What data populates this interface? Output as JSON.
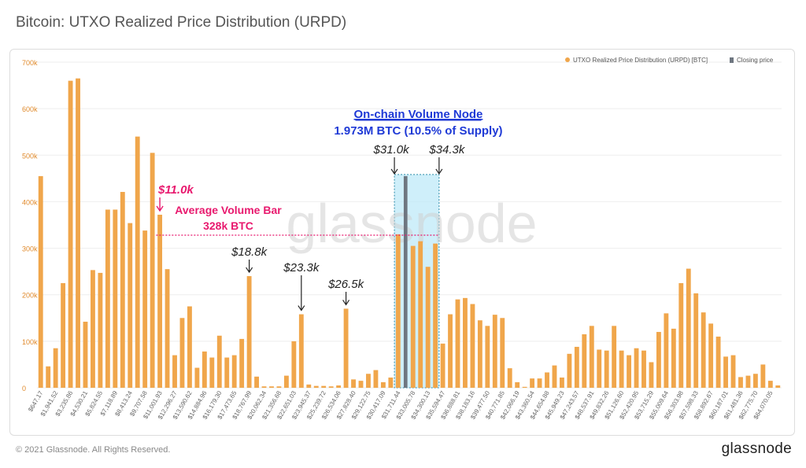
{
  "header": {
    "title": "Bitcoin: UTXO Realized Price Distribution (URPD)"
  },
  "footer": {
    "copyright": "© 2021 Glassnode. All Rights Reserved.",
    "brand": "glassnode"
  },
  "watermark": "glassnode",
  "colors": {
    "bar": "#f0a64b",
    "closing": "#6e7680",
    "annotation_blue": "#1f3ad6",
    "annotation_pink": "#e8196e",
    "highlight_fill": "#bfe9f8",
    "grid": "#eeeeee"
  },
  "chart_data": {
    "type": "bar",
    "title": "Bitcoin: UTXO Realized Price Distribution (URPD)",
    "ylim": [
      0,
      700000
    ],
    "y_ticks": [
      "0",
      "100k",
      "200k",
      "300k",
      "400k",
      "500k",
      "600k",
      "700k"
    ],
    "y_tick_values": [
      0,
      100000,
      200000,
      300000,
      400000,
      500000,
      600000,
      700000
    ],
    "grid": true,
    "legend_position": "top-right",
    "series": [
      {
        "name": "UTXO Realized Price Distribution (URPD) [BTC]",
        "color": "#f0a64b"
      },
      {
        "name": "Closing price",
        "color": "#6e7680"
      }
    ],
    "values": [
      455000,
      46000,
      85000,
      225000,
      660000,
      665000,
      142000,
      253000,
      247000,
      383000,
      383000,
      421000,
      354000,
      540000,
      338000,
      505000,
      372000,
      255000,
      70000,
      150000,
      175000,
      43000,
      78000,
      65000,
      112000,
      65000,
      70000,
      105000,
      240000,
      24000,
      3000,
      3000,
      3000,
      26000,
      100000,
      158000,
      7000,
      4000,
      4000,
      3000,
      5000,
      170000,
      18000,
      15000,
      30000,
      38000,
      12000,
      22000,
      330000,
      455000,
      305000,
      315000,
      260000,
      310000,
      95000,
      158000,
      190000,
      193000,
      180000,
      145000,
      133000,
      157000,
      150000,
      42000,
      12000,
      2000,
      20000,
      20000,
      33000,
      48000,
      22000,
      73000,
      88000,
      115000,
      133000,
      82000,
      80000,
      133000,
      80000,
      70000,
      85000,
      80000,
      55000,
      120000,
      160000,
      127000,
      225000,
      256000,
      203000,
      162000,
      138000,
      110000,
      67000,
      70000,
      23000,
      26000,
      30000,
      50000,
      15000,
      5000
    ],
    "closing_index": 49,
    "x_tick_labels": [
      "$647.17",
      "$1,941.52",
      "$3,235.86",
      "$4,530.21",
      "$5,824.55",
      "$7,118.89",
      "$8,413.24",
      "$9,707.58",
      "$11,001.93",
      "$12,296.27",
      "$13,590.62",
      "$14,884.96",
      "$16,179.30",
      "$17,473.65",
      "$18,767.99",
      "$20,062.34",
      "$21,356.68",
      "$22,651.03",
      "$23,945.37",
      "$25,239.72",
      "$26,534.06",
      "$27,828.40",
      "$29,122.75",
      "$30,417.09",
      "$31,711.44",
      "$33,005.78",
      "$34,300.13",
      "$35,594.47",
      "$36,888.81",
      "$38,183.16",
      "$39,477.50",
      "$40,771.85",
      "$42,066.19",
      "$43,360.54",
      "$44,654.88",
      "$45,949.23",
      "$47,243.57",
      "$48,537.91",
      "$49,832.26",
      "$51,126.60",
      "$52,420.95",
      "$53,715.29",
      "$55,009.64",
      "$56,303.98",
      "$57,598.33",
      "$58,892.67",
      "$60,187.01",
      "$61,481.36",
      "$62,775.70",
      "$64,070.05"
    ],
    "annotations": {
      "volume_node_title": "On-chain Volume Node",
      "volume_node_sub": "1.973M BTC (10.5% of Supply)",
      "range_low": "$31.0k",
      "range_high": "$34.3k",
      "avg_title": "Average Volume Bar",
      "avg_value": "328k BTC",
      "avg_level": 328000,
      "price_11k": "$11.0k",
      "price_18k": "$18.8k",
      "price_23k": "$23.3k",
      "price_26k": "$26.5k",
      "range_start_index": 48,
      "range_end_index": 53,
      "index_11k": 16,
      "index_18k": 28,
      "index_23k": 35,
      "index_26k": 41
    }
  }
}
